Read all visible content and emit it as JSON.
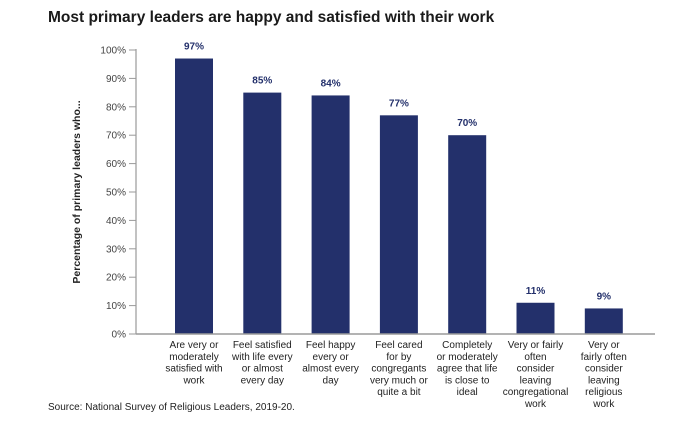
{
  "chart_data": {
    "type": "bar",
    "title": "Most primary leaders are happy and satisfied with their work",
    "xlabel": "",
    "ylabel": "Percentage of primary leaders who...",
    "ylim": [
      0,
      100
    ],
    "yticks": [
      0,
      10,
      20,
      30,
      40,
      50,
      60,
      70,
      80,
      90,
      100
    ],
    "ytick_labels": [
      "0%",
      "10%",
      "20%",
      "30%",
      "40%",
      "50%",
      "60%",
      "70%",
      "80%",
      "90%",
      "100%"
    ],
    "grid": false,
    "legend": "none",
    "bar_color": "#23306b",
    "categories": [
      [
        "Are very or",
        "moderately",
        "satisfied with",
        "work"
      ],
      [
        "Feel satisfied",
        "with life every",
        "or almost",
        "every day"
      ],
      [
        "Feel happy",
        "every or",
        "almost every",
        "day"
      ],
      [
        "Feel cared",
        "for by",
        "congregants",
        "very much or",
        "quite a bit"
      ],
      [
        "Completely",
        "or moderately",
        "agree that life",
        "is close to",
        "ideal"
      ],
      [
        "Very or fairly",
        "often",
        "consider",
        "leaving",
        "congregational",
        "work"
      ],
      [
        "Very or",
        "fairly often",
        "consider",
        "leaving",
        "religious",
        "work"
      ]
    ],
    "values": [
      97,
      85,
      84,
      77,
      70,
      11,
      9
    ],
    "data_labels": [
      "97%",
      "85%",
      "84%",
      "77%",
      "70%",
      "11%",
      "9%"
    ],
    "source": "Source: National Survey of Religious Leaders, 2019-20."
  }
}
